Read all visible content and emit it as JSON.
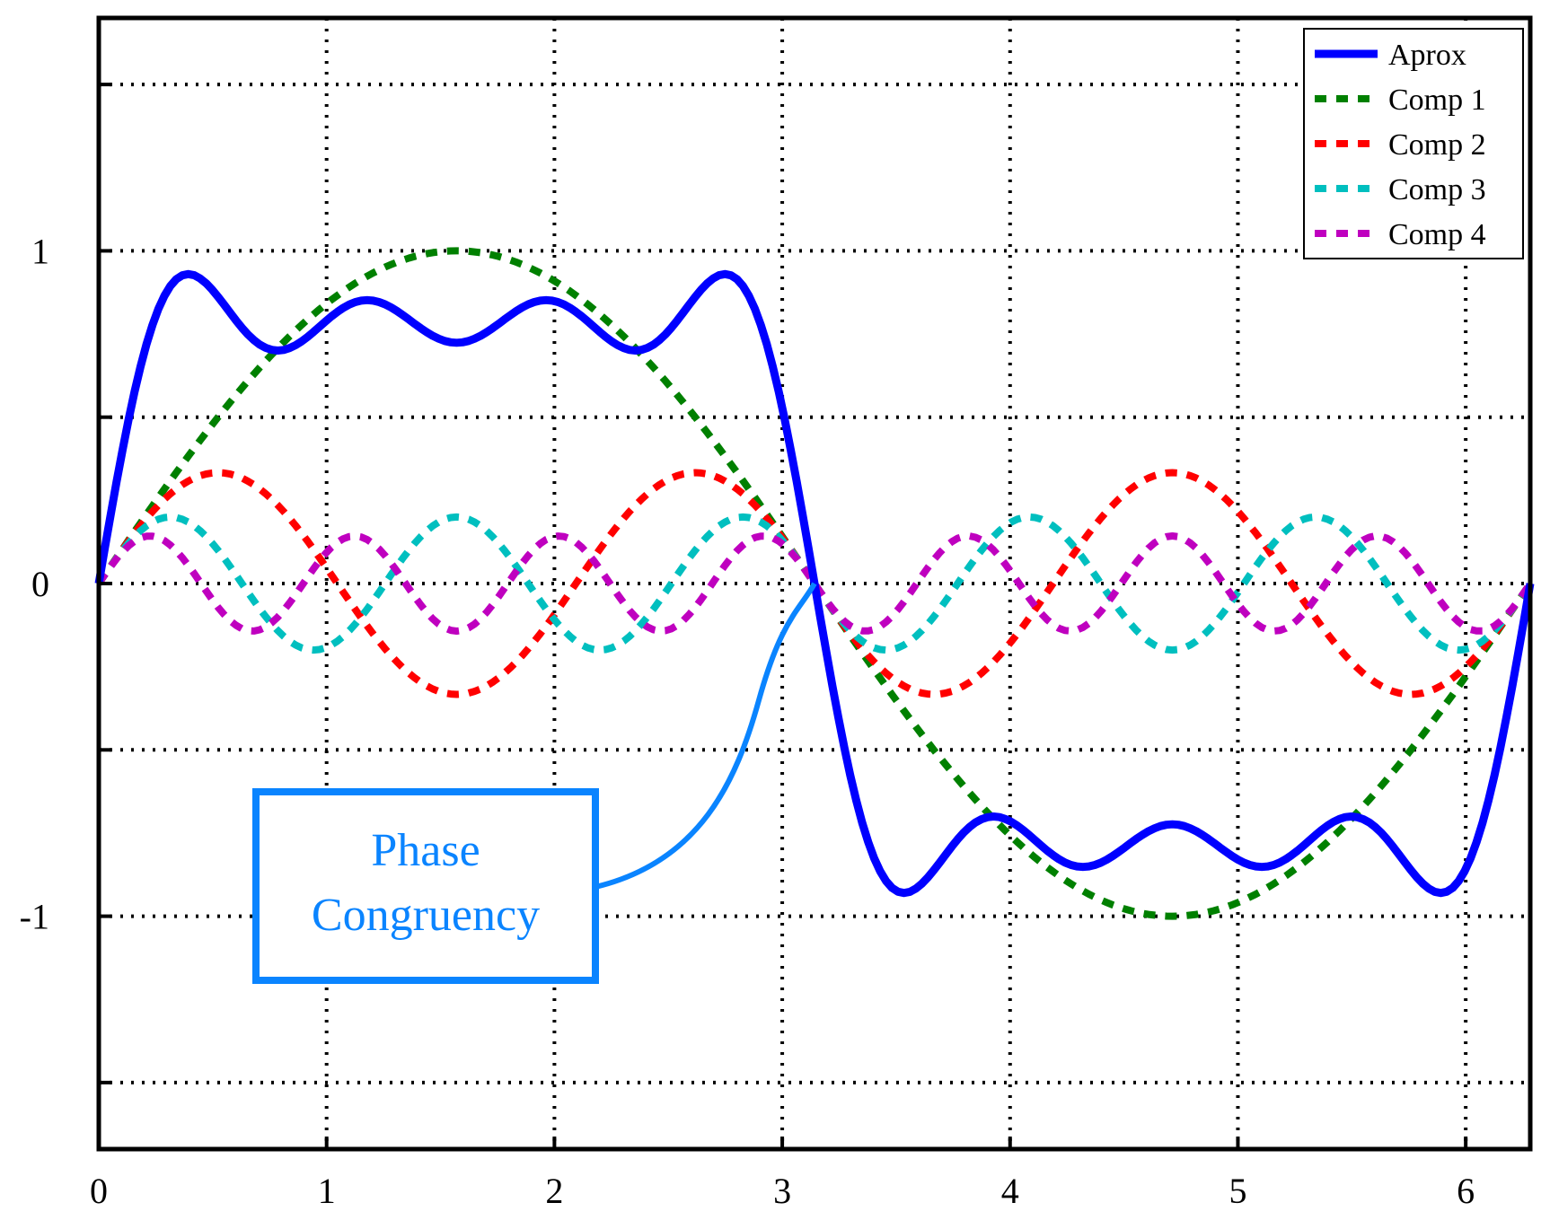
{
  "chart_data": {
    "type": "line",
    "title": "",
    "xlabel": "",
    "ylabel": "",
    "xlim": [
      0,
      6.2832
    ],
    "ylim": [
      -1.7,
      1.7
    ],
    "x_ticks": [
      0,
      1,
      2,
      3,
      4,
      5,
      6
    ],
    "x_tick_labels": [
      "0",
      "1",
      "2",
      "3",
      "4",
      "5",
      "6"
    ],
    "y_ticks": [
      -1.5,
      -1,
      -0.5,
      0,
      0.5,
      1,
      1.5
    ],
    "y_tick_labels": [
      "",
      "-1",
      "",
      "0",
      "",
      "1",
      ""
    ],
    "grid": true,
    "legend_position": "top-right",
    "x_range_samples": {
      "start": 0,
      "end": 6.2832,
      "count": 241
    },
    "series": [
      {
        "name": "Aprox",
        "color": "#0000ff",
        "style": "solid",
        "sum_of_components": [
          1,
          2,
          3,
          4
        ]
      },
      {
        "name": "Comp 1",
        "color": "#008000",
        "style": "dashed",
        "amplitude": 1.0,
        "harmonic": 1
      },
      {
        "name": "Comp 2",
        "color": "#ff0000",
        "style": "dashed",
        "amplitude": 0.3333,
        "harmonic": 3
      },
      {
        "name": "Comp 3",
        "color": "#00bfbf",
        "style": "dashed",
        "amplitude": 0.2,
        "harmonic": 5
      },
      {
        "name": "Comp 4",
        "color": "#bf00bf",
        "style": "dashed",
        "amplitude": 0.1429,
        "harmonic": 7
      }
    ],
    "annotation": {
      "text_lines": [
        "Phase",
        "Congruency"
      ],
      "color": "#0a84ff",
      "points_to": {
        "x": 3.1416,
        "y": 0
      }
    }
  }
}
